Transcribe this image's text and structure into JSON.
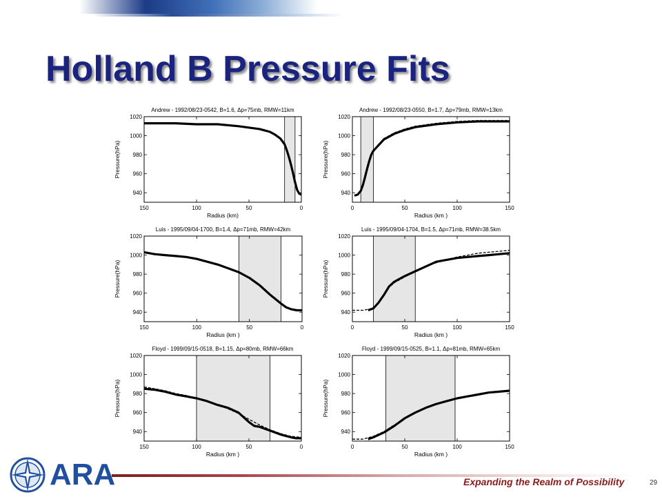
{
  "slide": {
    "title": "Holland B Pressure Fits",
    "tagline": "Expanding the Realm of Possibility",
    "page_number": "29",
    "logo_text": "ARA",
    "accent_color": "#1a237e",
    "footer_color": "#8b1a1a"
  },
  "chart_data": [
    {
      "type": "line",
      "title": "Andrew - 1992/08/23-0542, B=1.6, Δp=75mb, RMW=11km",
      "xlabel": "Radius (km)",
      "ylabel": "Pressure(hPa)",
      "xlim": [
        150,
        0
      ],
      "ylim": [
        930,
        1020
      ],
      "xticks": [
        "150",
        "100",
        "50",
        "0"
      ],
      "yticks": [
        "940",
        "960",
        "980",
        "1000",
        "1020"
      ],
      "shaded_band": [
        6,
        16
      ],
      "series": [
        {
          "style": "solid",
          "x": [
            150,
            120,
            100,
            80,
            60,
            40,
            30,
            25,
            20,
            16,
            14,
            12,
            10,
            8,
            6,
            4,
            2,
            0
          ],
          "y": [
            1013,
            1013,
            1012,
            1012,
            1010,
            1007,
            1004,
            1001,
            997,
            991,
            985,
            978,
            970,
            961,
            951,
            943,
            939,
            938
          ]
        },
        {
          "style": "dashed",
          "x": [
            150,
            120,
            100,
            80,
            60,
            40,
            30,
            25,
            20,
            16,
            14,
            12,
            10,
            8,
            6,
            4,
            2,
            0
          ],
          "y": [
            1013,
            1013,
            1012,
            1012,
            1010,
            1007,
            1004,
            1001,
            997,
            991,
            985,
            978,
            970,
            961,
            951,
            943,
            939,
            938
          ]
        }
      ]
    },
    {
      "type": "line",
      "title": "Andrew - 1992/08/23-0550, B=1.7, Δp=79mb, RMW=13km",
      "xlabel": "Radius (km )",
      "ylabel": "Pressure(hPa)",
      "xlim": [
        0,
        150
      ],
      "ylim": [
        930,
        1020
      ],
      "xticks": [
        "0",
        "50",
        "100",
        "150"
      ],
      "yticks": [
        "940",
        "960",
        "980",
        "1000",
        "1020"
      ],
      "shaded_band": [
        8,
        20
      ],
      "series": [
        {
          "style": "solid",
          "x": [
            2,
            5,
            8,
            10,
            12,
            14,
            16,
            18,
            20,
            25,
            30,
            40,
            50,
            60,
            80,
            100,
            120,
            150
          ],
          "y": [
            937,
            938,
            942,
            948,
            956,
            965,
            973,
            980,
            984,
            990,
            996,
            1002,
            1006,
            1009,
            1012,
            1014,
            1015,
            1015
          ]
        },
        {
          "style": "dashed",
          "x": [
            2,
            5,
            8,
            10,
            12,
            14,
            16,
            18,
            20,
            25,
            30,
            40,
            50,
            60,
            80,
            100,
            120,
            150
          ],
          "y": [
            937,
            938,
            941,
            947,
            955,
            964,
            972,
            979,
            984,
            991,
            997,
            1003,
            1007,
            1010,
            1013,
            1015,
            1016,
            1016
          ]
        }
      ]
    },
    {
      "type": "line",
      "title": "Luis - 1995/09/04-1700, B=1.4, Δp=71mb, RMW=42km",
      "xlabel": "Radius (km )",
      "ylabel": "Pressure(hPa)",
      "xlim": [
        150,
        0
      ],
      "ylim": [
        930,
        1020
      ],
      "xticks": [
        "150",
        "100",
        "50",
        "0"
      ],
      "yticks": [
        "940",
        "960",
        "980",
        "1000",
        "1020"
      ],
      "shaded_band": [
        20,
        60
      ],
      "series": [
        {
          "style": "solid",
          "x": [
            150,
            140,
            130,
            120,
            110,
            100,
            90,
            80,
            70,
            60,
            50,
            40,
            30,
            20,
            15,
            10,
            5,
            0
          ],
          "y": [
            1003,
            1001,
            1000,
            999,
            998,
            996,
            993,
            990,
            986,
            982,
            976,
            968,
            958,
            949,
            945,
            943,
            942,
            942
          ]
        },
        {
          "style": "dashed",
          "x": [
            150,
            140,
            130,
            120,
            110,
            100,
            90,
            80,
            70,
            60,
            50,
            40,
            30,
            20,
            15,
            10,
            5,
            0
          ],
          "y": [
            1003,
            1001,
            1000,
            999,
            998,
            996,
            993,
            990,
            986,
            982,
            976,
            968,
            958,
            949,
            945,
            943,
            942,
            942
          ]
        }
      ]
    },
    {
      "type": "line",
      "title": "Luis - 1995/09/04-1704, B=1.5, Δp=71mb, RMW=38.5km",
      "xlabel": "Radius (km )",
      "ylabel": "Pressure(hPa)",
      "xlim": [
        0,
        150
      ],
      "ylim": [
        930,
        1020
      ],
      "xticks": [
        "0",
        "50",
        "100",
        "150"
      ],
      "yticks": [
        "940",
        "960",
        "980",
        "1000",
        "1020"
      ],
      "shaded_band": [
        20,
        60
      ],
      "series": [
        {
          "style": "solid",
          "x": [
            15,
            20,
            25,
            30,
            35,
            40,
            50,
            60,
            70,
            80,
            90,
            100,
            110,
            120,
            130,
            140,
            150
          ],
          "y": [
            942,
            944,
            950,
            958,
            967,
            972,
            978,
            983,
            988,
            993,
            995,
            997,
            998,
            999,
            1000,
            1001,
            1002
          ]
        },
        {
          "style": "dashed",
          "x": [
            0,
            10,
            20,
            25,
            30,
            35,
            40,
            50,
            60,
            70,
            80,
            90,
            100,
            110,
            120,
            130,
            140,
            150
          ],
          "y": [
            942,
            942,
            944,
            950,
            958,
            966,
            971,
            977,
            983,
            988,
            992,
            995,
            998,
            1000,
            1002,
            1003,
            1004,
            1005
          ]
        }
      ]
    },
    {
      "type": "line",
      "title": "Floyd - 1999/09/15-0518, B=1.15, Δp=80mb, RMW=66km",
      "xlabel": "Radius (km )",
      "ylabel": "Pressure(hPa)",
      "xlim": [
        150,
        0
      ],
      "ylim": [
        930,
        1020
      ],
      "xticks": [
        "150",
        "100",
        "50",
        "0"
      ],
      "yticks": [
        "940",
        "960",
        "980",
        "1000",
        "1020"
      ],
      "shaded_band": [
        30,
        100
      ],
      "series": [
        {
          "style": "solid",
          "x": [
            150,
            140,
            130,
            120,
            110,
            100,
            90,
            80,
            70,
            60,
            55,
            50,
            45,
            40,
            30,
            20,
            10,
            5,
            0
          ],
          "y": [
            985,
            984,
            982,
            979,
            977,
            975,
            972,
            968,
            965,
            960,
            955,
            950,
            946,
            945,
            941,
            937,
            934,
            933,
            933
          ]
        },
        {
          "style": "dashed",
          "x": [
            150,
            140,
            130,
            120,
            110,
            100,
            90,
            80,
            70,
            60,
            50,
            40,
            30,
            20,
            10,
            0
          ],
          "y": [
            987,
            985,
            983,
            980,
            978,
            975,
            972,
            968,
            964,
            959,
            953,
            947,
            942,
            938,
            935,
            934
          ]
        }
      ]
    },
    {
      "type": "line",
      "title": "Floyd - 1999/09/15-0525, B=1.1, Δp=81mb, RMW=65km",
      "xlabel": "Radius (km )",
      "ylabel": "Pressure(hPa)",
      "xlim": [
        0,
        150
      ],
      "ylim": [
        930,
        1020
      ],
      "xticks": [
        "0",
        "50",
        "100",
        "150"
      ],
      "yticks": [
        "940",
        "960",
        "980",
        "1000",
        "1020"
      ],
      "shaded_band": [
        32,
        98
      ],
      "series": [
        {
          "style": "solid",
          "x": [
            15,
            20,
            30,
            40,
            50,
            60,
            70,
            80,
            90,
            100,
            110,
            120,
            130,
            140,
            150
          ],
          "y": [
            932,
            934,
            939,
            946,
            954,
            960,
            965,
            969,
            972,
            975,
            977,
            979,
            981,
            982,
            983
          ]
        },
        {
          "style": "dashed",
          "x": [
            0,
            10,
            20,
            30,
            40,
            50,
            60,
            70,
            80,
            90,
            100,
            110,
            120,
            130,
            140,
            150
          ],
          "y": [
            932,
            932,
            935,
            940,
            947,
            954,
            960,
            965,
            969,
            972,
            975,
            977,
            979,
            981,
            982,
            983
          ]
        }
      ]
    }
  ]
}
